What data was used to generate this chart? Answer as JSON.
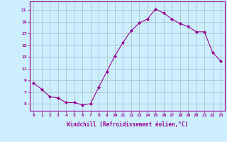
{
  "x": [
    0,
    1,
    2,
    3,
    4,
    5,
    6,
    7,
    8,
    9,
    10,
    11,
    12,
    13,
    14,
    15,
    16,
    17,
    18,
    19,
    20,
    21,
    22,
    23
  ],
  "y": [
    8.5,
    7.5,
    6.2,
    6.0,
    5.2,
    5.2,
    4.8,
    5.0,
    7.8,
    10.5,
    13.2,
    15.5,
    17.5,
    18.8,
    19.5,
    21.2,
    20.5,
    19.5,
    18.7,
    18.2,
    17.3,
    17.3,
    13.8,
    12.3
  ],
  "line_color": "#990099",
  "marker": "D",
  "marker_size": 2,
  "bg_color": "#cceeff",
  "grid_color": "#aabbcc",
  "xlabel": "Windchill (Refroidissement éolien,°C)",
  "xlabel_color": "#990099",
  "ytick_labels": [
    "5",
    "7",
    "9",
    "11",
    "13",
    "15",
    "17",
    "19",
    "21"
  ],
  "yticks": [
    5,
    7,
    9,
    11,
    13,
    15,
    17,
    19,
    21
  ],
  "ylim": [
    3.8,
    22.5
  ],
  "xlim": [
    -0.5,
    23.5
  ],
  "tick_color": "#990099",
  "spine_color": "#990099",
  "figsize": [
    3.2,
    2.0
  ],
  "dpi": 100
}
